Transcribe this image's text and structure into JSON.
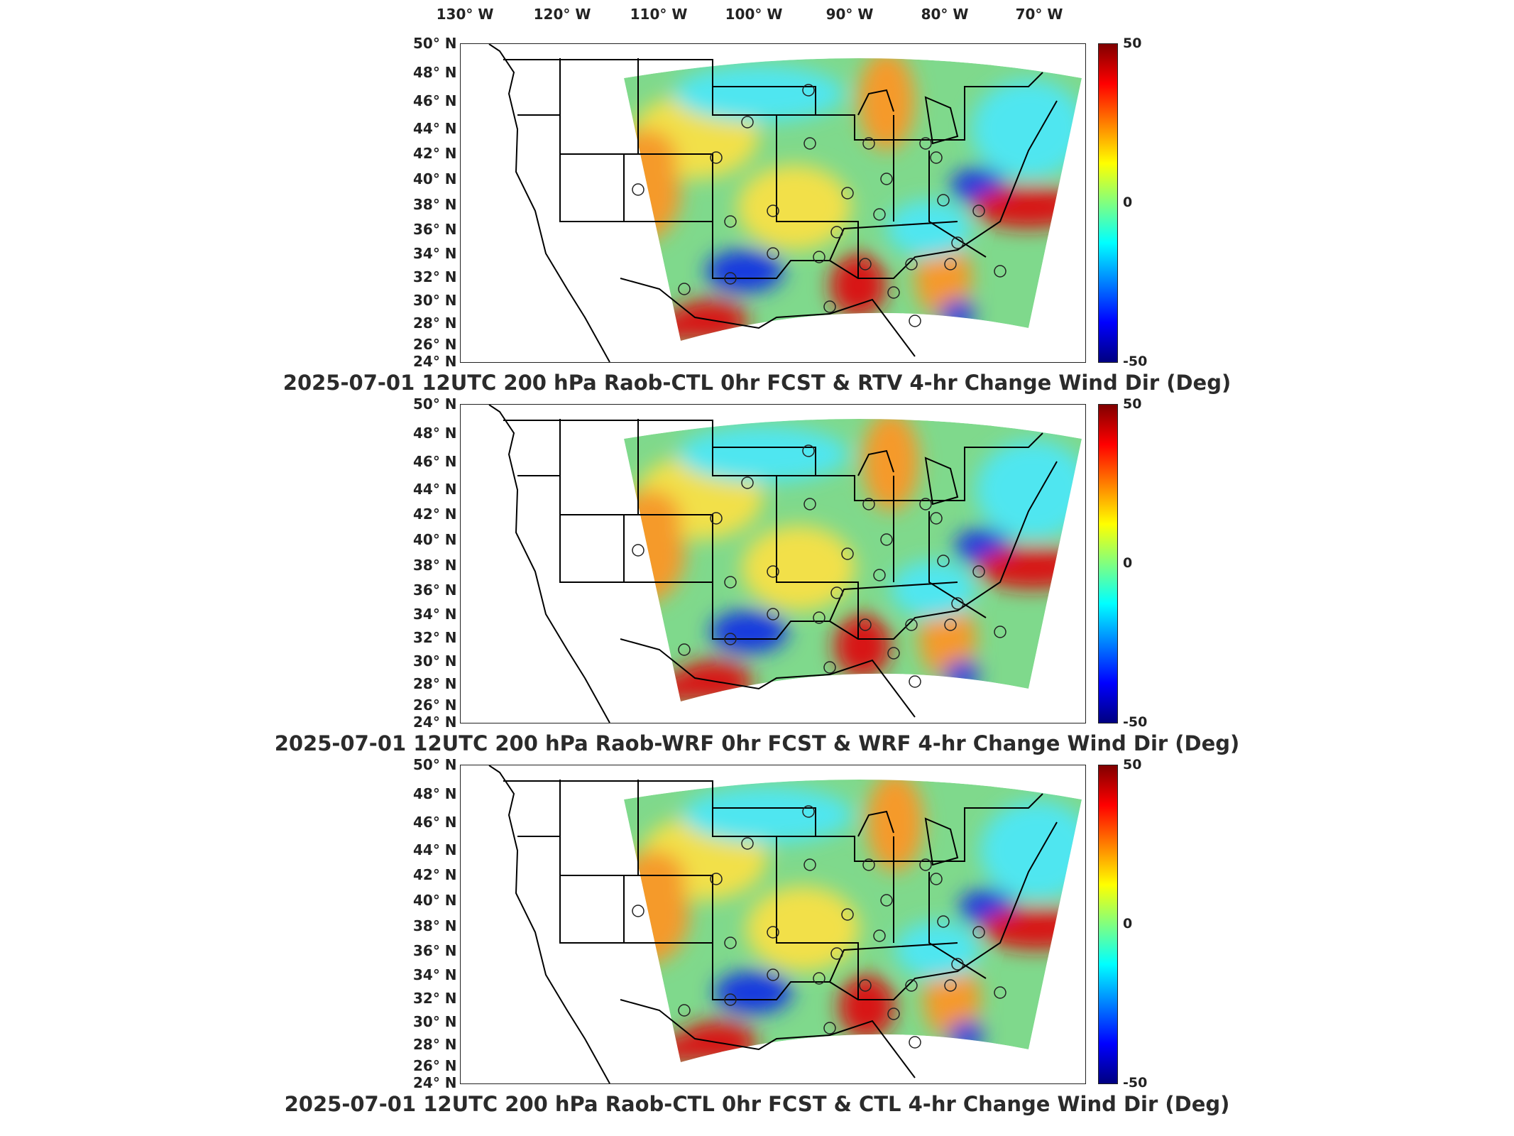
{
  "longitude_labels": [
    "130° W",
    "120° W",
    "110° W",
    "100° W",
    "90° W",
    "80° W",
    "70° W"
  ],
  "latitude_labels": [
    "50° N",
    "48° N",
    "46° N",
    "44° N",
    "42° N",
    "40° N",
    "38° N",
    "36° N",
    "34° N",
    "32° N",
    "30° N",
    "28° N",
    "26° N",
    "24° N"
  ],
  "colorbar": {
    "max_label": "50",
    "mid_label": "0",
    "min_label": "-50",
    "colormap": [
      "#000080",
      "#0000ff",
      "#0080ff",
      "#00ffff",
      "#80ff80",
      "#ffff00",
      "#ff8000",
      "#ff0000",
      "#800000"
    ]
  },
  "panels": [
    {
      "title": "2025-07-01 12UTC 200 hPa Raob-CTL 0hr FCST & RTV 4-hr Change Wind Dir (Deg)"
    },
    {
      "title": "2025-07-01 12UTC 200 hPa Raob-WRF 0hr FCST & WRF 4-hr Change Wind Dir (Deg)"
    },
    {
      "title": "2025-07-01 12UTC 200 hPa Raob-CTL 0hr FCST & CTL 4-hr Change Wind Dir (Deg)"
    }
  ],
  "colors": {
    "field_base": "#7fd98c",
    "cyan_region": "#4fe6f0",
    "yellow_region": "#f2e04a",
    "orange_region": "#f59a2a",
    "red_region": "#d81818",
    "blue_region": "#1838e0",
    "outline": "#000000"
  }
}
